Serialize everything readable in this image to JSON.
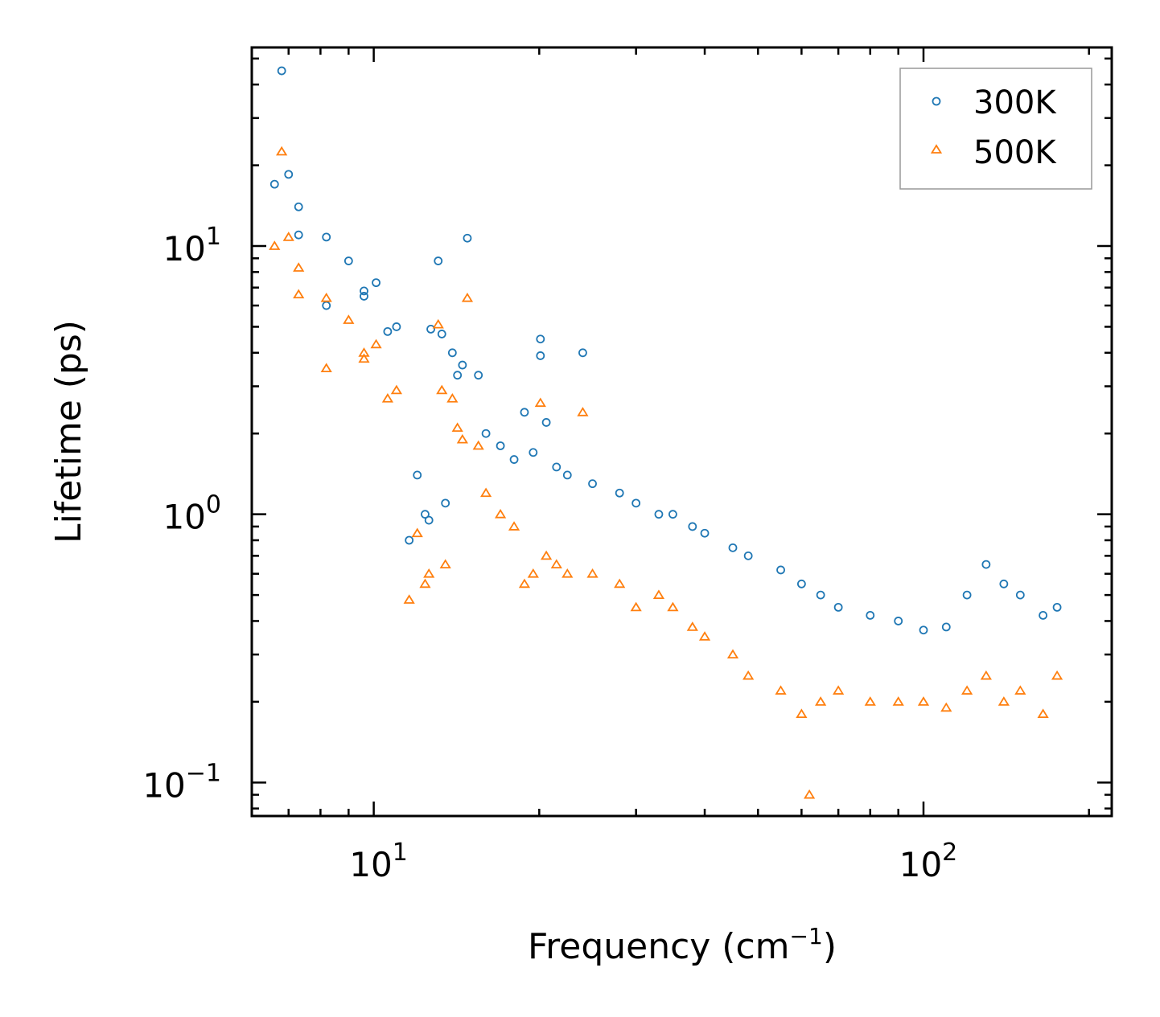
{
  "chart_data": {
    "type": "scatter",
    "xscale": "log",
    "yscale": "log",
    "xlim": [
      6,
      220
    ],
    "ylim": [
      0.075,
      55
    ],
    "xlabel": "Frequency (cm",
    "xlabel_exp": "−1",
    "xlabel_end": ")",
    "ylabel": "Lifetime (ps)",
    "xticks": [
      {
        "value": 10,
        "base": "10",
        "exp": "1"
      },
      {
        "value": 100,
        "base": "10",
        "exp": "2"
      }
    ],
    "yticks": [
      {
        "value": 0.1,
        "base": "10",
        "exp": "−1"
      },
      {
        "value": 1,
        "base": "10",
        "exp": "0"
      },
      {
        "value": 10,
        "base": "10",
        "exp": "1"
      }
    ],
    "legend": {
      "position": "top-right"
    },
    "series": [
      {
        "name": "300K",
        "marker": "circle",
        "color": "#1f77b4",
        "x": [
          6.8,
          6.6,
          7.0,
          7.3,
          7.3,
          8.2,
          8.2,
          9.0,
          9.6,
          9.6,
          10.1,
          10.6,
          11.0,
          11.6,
          12.0,
          12.4,
          12.6,
          12.7,
          13.1,
          13.3,
          13.5,
          13.9,
          14.2,
          14.5,
          14.8,
          15.5,
          16.0,
          17.0,
          18.0,
          18.8,
          19.5,
          20.1,
          20.1,
          20.6,
          21.5,
          22.5,
          24.0,
          25.0,
          28.0,
          30.0,
          33.0,
          35.0,
          38.0,
          40.0,
          45.0,
          48.0,
          55.0,
          60.0,
          65.0,
          70.0,
          80.0,
          90.0,
          100.0,
          110.0,
          120.0,
          130.0,
          140.0,
          150.0,
          165.0,
          175.0
        ],
        "y": [
          45.0,
          17.0,
          18.5,
          14.0,
          11.0,
          10.8,
          6.0,
          8.8,
          6.8,
          6.5,
          7.3,
          4.8,
          5.0,
          0.8,
          1.4,
          1.0,
          0.95,
          4.9,
          8.8,
          4.7,
          1.1,
          4.0,
          3.3,
          3.6,
          10.7,
          3.3,
          2.0,
          1.8,
          1.6,
          2.4,
          1.7,
          4.5,
          3.9,
          2.2,
          1.5,
          1.4,
          4.0,
          1.3,
          1.2,
          1.1,
          1.0,
          1.0,
          0.9,
          0.85,
          0.75,
          0.7,
          0.62,
          0.55,
          0.5,
          0.45,
          0.42,
          0.4,
          0.37,
          0.38,
          0.5,
          0.65,
          0.55,
          0.5,
          0.42,
          0.45
        ]
      },
      {
        "name": "500K",
        "marker": "triangle",
        "color": "#ff7f0e",
        "x": [
          6.6,
          6.8,
          7.0,
          7.3,
          7.3,
          8.2,
          8.2,
          9.0,
          9.6,
          9.6,
          10.1,
          10.6,
          11.0,
          11.6,
          12.0,
          12.4,
          12.6,
          13.1,
          13.3,
          13.5,
          13.9,
          14.2,
          14.5,
          14.8,
          15.5,
          16.0,
          17.0,
          18.0,
          18.8,
          19.5,
          20.1,
          20.6,
          21.5,
          22.5,
          24.0,
          25.0,
          28.0,
          30.0,
          33.0,
          35.0,
          38.0,
          40.0,
          45.0,
          48.0,
          55.0,
          60.0,
          62.0,
          65.0,
          70.0,
          80.0,
          90.0,
          100.0,
          110.0,
          120.0,
          130.0,
          140.0,
          150.0,
          165.0,
          175.0
        ],
        "y": [
          10.0,
          22.5,
          10.8,
          8.3,
          6.6,
          6.4,
          3.5,
          5.3,
          4.0,
          3.8,
          4.3,
          2.7,
          2.9,
          0.48,
          0.85,
          0.55,
          0.6,
          5.1,
          2.9,
          0.65,
          2.7,
          2.1,
          1.9,
          6.4,
          1.8,
          1.2,
          1.0,
          0.9,
          0.55,
          0.6,
          2.6,
          0.7,
          0.65,
          0.6,
          2.4,
          0.6,
          0.55,
          0.45,
          0.5,
          0.45,
          0.38,
          0.35,
          0.3,
          0.25,
          0.22,
          0.18,
          0.09,
          0.2,
          0.22,
          0.2,
          0.2,
          0.2,
          0.19,
          0.22,
          0.25,
          0.2,
          0.22,
          0.18,
          0.25
        ]
      }
    ]
  }
}
